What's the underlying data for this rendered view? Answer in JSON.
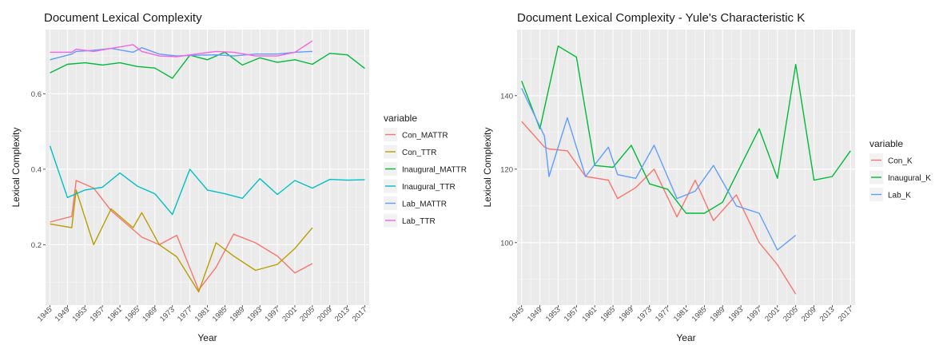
{
  "chart_data": [
    {
      "type": "line",
      "title": "Document Lexical Complexity",
      "xlabel": "Year",
      "ylabel": "Lexical Complexity",
      "x_ticks": [
        1945,
        1949,
        1953,
        1957,
        1961,
        1965,
        1969,
        1973,
        1977,
        1981,
        1985,
        1989,
        1993,
        1997,
        2001,
        2005,
        2009,
        2013,
        2017
      ],
      "xlim": [
        1944,
        2018
      ],
      "ylim": [
        0.04,
        0.77
      ],
      "y_ticks": [
        0.2,
        0.4,
        0.6
      ],
      "y_tick_labels": [
        "0.2",
        "0.4",
        "0.6"
      ],
      "grid": true,
      "legend_title": "variable",
      "legend_position": "right",
      "series": [
        {
          "name": "Con_MATTR",
          "color": "#F8766D",
          "x": [
            1945,
            1950,
            1951,
            1955,
            1959,
            1964,
            1966,
            1970,
            1974,
            1979,
            1983,
            1987,
            1992,
            1997,
            2001,
            2005
          ],
          "y": [
            0.26,
            0.275,
            0.37,
            0.35,
            0.29,
            0.24,
            0.22,
            0.2,
            0.225,
            0.08,
            0.14,
            0.228,
            0.205,
            0.17,
            0.125,
            0.15
          ]
        },
        {
          "name": "Con_TTR",
          "color": "#B79F00",
          "x": [
            1945,
            1950,
            1951,
            1955,
            1959,
            1964,
            1966,
            1970,
            1974,
            1979,
            1983,
            1987,
            1992,
            1997,
            2001,
            2005
          ],
          "y": [
            0.255,
            0.245,
            0.345,
            0.2,
            0.295,
            0.245,
            0.285,
            0.2,
            0.168,
            0.075,
            0.205,
            0.17,
            0.132,
            0.148,
            0.19,
            0.245
          ]
        },
        {
          "name": "Inaugural_MATTR",
          "color": "#00BA38",
          "x": [
            1945,
            1949,
            1953,
            1957,
            1961,
            1965,
            1969,
            1973,
            1977,
            1981,
            1985,
            1989,
            1993,
            1997,
            2001,
            2005,
            2009,
            2013,
            2017
          ],
          "y": [
            0.655,
            0.678,
            0.682,
            0.676,
            0.682,
            0.672,
            0.668,
            0.641,
            0.702,
            0.69,
            0.71,
            0.676,
            0.695,
            0.683,
            0.69,
            0.678,
            0.707,
            0.703,
            0.667
          ]
        },
        {
          "name": "Inaugural_TTR",
          "color": "#00BFC4",
          "x": [
            1945,
            1949,
            1953,
            1957,
            1961,
            1965,
            1969,
            1973,
            1977,
            1981,
            1985,
            1989,
            1993,
            1997,
            2001,
            2005,
            2009,
            2013,
            2017
          ],
          "y": [
            0.462,
            0.325,
            0.345,
            0.352,
            0.39,
            0.355,
            0.335,
            0.28,
            0.4,
            0.345,
            0.335,
            0.323,
            0.375,
            0.333,
            0.37,
            0.35,
            0.373,
            0.371,
            0.372
          ]
        },
        {
          "name": "Lab_MATTR",
          "color": "#619CFF",
          "x": [
            1945,
            1950,
            1951,
            1955,
            1959,
            1964,
            1966,
            1970,
            1974,
            1979,
            1983,
            1987,
            1992,
            1997,
            2001,
            2005
          ],
          "y": [
            0.69,
            0.705,
            0.712,
            0.715,
            0.72,
            0.71,
            0.722,
            0.705,
            0.7,
            0.702,
            0.703,
            0.7,
            0.705,
            0.705,
            0.71,
            0.712
          ]
        },
        {
          "name": "Lab_TTR",
          "color": "#F564E3",
          "x": [
            1945,
            1950,
            1951,
            1955,
            1959,
            1964,
            1966,
            1970,
            1974,
            1979,
            1983,
            1987,
            1992,
            1997,
            2001,
            2005
          ],
          "y": [
            0.71,
            0.71,
            0.718,
            0.712,
            0.72,
            0.73,
            0.712,
            0.7,
            0.698,
            0.706,
            0.712,
            0.71,
            0.7,
            0.7,
            0.71,
            0.74
          ]
        }
      ]
    },
    {
      "type": "line",
      "title": "Document Lexical Complexity - Yule's Characteristic K",
      "xlabel": "Year",
      "ylabel": "Lexical Complexity",
      "x_ticks": [
        1945,
        1949,
        1953,
        1957,
        1961,
        1965,
        1969,
        1973,
        1977,
        1981,
        1985,
        1989,
        1993,
        1997,
        2001,
        2005,
        2009,
        2013,
        2017
      ],
      "xlim": [
        1944,
        2018
      ],
      "ylim": [
        83,
        158
      ],
      "y_ticks": [
        100,
        120,
        140
      ],
      "y_tick_labels": [
        "100",
        "120",
        "140"
      ],
      "grid": true,
      "legend_title": "variable",
      "legend_position": "right",
      "series": [
        {
          "name": "Con_K",
          "color": "#F8766D",
          "x": [
            1945,
            1950,
            1951,
            1955,
            1959,
            1964,
            1966,
            1970,
            1974,
            1979,
            1983,
            1987,
            1992,
            1997,
            2001,
            2005
          ],
          "y": [
            133,
            126,
            125.5,
            125,
            118,
            117,
            112,
            115,
            120,
            107,
            117,
            106,
            113,
            100,
            94,
            86
          ]
        },
        {
          "name": "Inaugural_K",
          "color": "#00BA38",
          "x": [
            1945,
            1949,
            1953,
            1957,
            1961,
            1965,
            1969,
            1973,
            1977,
            1981,
            1985,
            1989,
            1993,
            1997,
            2001,
            2005,
            2009,
            2013,
            2017
          ],
          "y": [
            144,
            131,
            153.5,
            150.5,
            121,
            120.5,
            126.5,
            116,
            114.5,
            108,
            108,
            111,
            121,
            131,
            117.5,
            148.5,
            117,
            118,
            125
          ]
        },
        {
          "name": "Lab_K",
          "color": "#619CFF",
          "x": [
            1945,
            1950,
            1951,
            1955,
            1959,
            1964,
            1966,
            1970,
            1974,
            1979,
            1983,
            1987,
            1992,
            1997,
            2001,
            2005
          ],
          "y": [
            142,
            129,
            118,
            134,
            118,
            126,
            118.5,
            117.5,
            126.5,
            112,
            114,
            121,
            110,
            108,
            98,
            102
          ]
        }
      ]
    }
  ]
}
